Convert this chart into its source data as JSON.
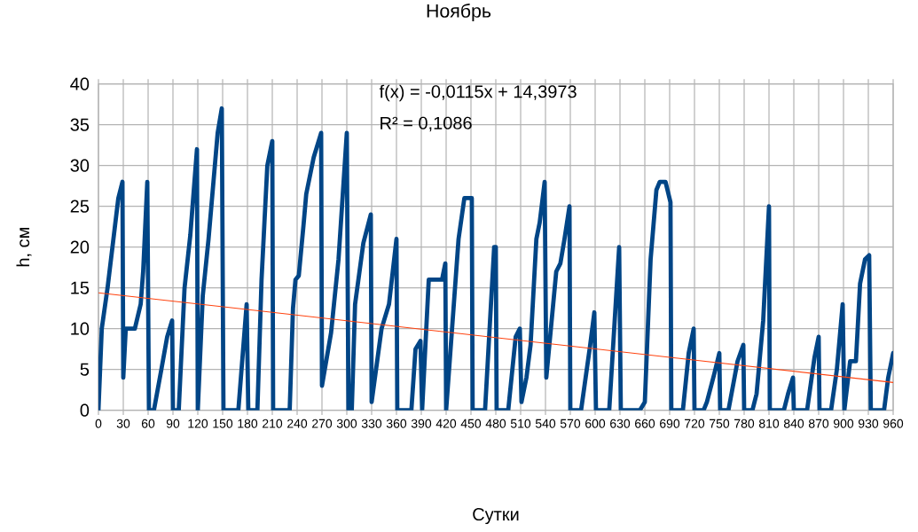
{
  "chart_data": {
    "type": "line",
    "title": "Ноябрь",
    "xlabel": "Сутки",
    "ylabel": "h, см",
    "annotations": [
      "f(x) = -0,0115x + 14,3973",
      "R² = 0,1086"
    ],
    "xlim": [
      0,
      960
    ],
    "ylim": [
      0,
      40
    ],
    "xticks": [
      0,
      30,
      60,
      90,
      120,
      150,
      180,
      210,
      240,
      270,
      300,
      330,
      360,
      390,
      420,
      450,
      480,
      510,
      540,
      570,
      600,
      630,
      660,
      690,
      720,
      750,
      780,
      810,
      840,
      870,
      900,
      930,
      960
    ],
    "yticks": [
      0,
      5,
      10,
      15,
      20,
      25,
      30,
      35,
      40
    ],
    "grid": true,
    "series": [
      {
        "color": "#004586",
        "x": [
          0,
          4,
          11,
          24,
          29,
          30,
          33,
          44,
          51,
          54,
          59,
          61,
          67,
          76,
          83,
          89,
          90,
          97,
          104,
          111,
          119,
          120,
          126,
          133,
          144,
          149,
          151,
          169,
          179,
          181,
          192,
          197,
          204,
          210,
          211,
          231,
          235,
          238,
          242,
          248,
          251,
          260,
          269,
          270,
          281,
          290,
          300,
          302,
          306,
          310,
          320,
          329,
          330,
          342,
          351,
          360,
          361,
          378,
          383,
          389,
          391,
          399,
          415,
          419,
          420,
          435,
          442,
          451,
          452,
          467,
          478,
          480,
          481,
          495,
          504,
          509,
          511,
          517,
          522,
          529,
          533,
          539,
          541,
          553,
          558,
          563,
          569,
          570,
          583,
          594,
          599,
          601,
          617,
          629,
          631,
          654,
          660,
          667,
          674,
          678,
          685,
          691,
          692,
          706,
          713,
          719,
          720,
          731,
          735,
          744,
          750,
          751,
          761,
          772,
          779,
          780,
          790,
          795,
          803,
          808,
          810,
          811,
          828,
          833,
          839,
          840,
          856,
          865,
          870,
          871,
          885,
          892,
          899,
          901,
          908,
          915,
          920,
          926,
          931,
          933,
          949,
          954,
          960
        ],
        "values": [
          0,
          10,
          15,
          26,
          28,
          4,
          10,
          10,
          13,
          17,
          28,
          0,
          0,
          5,
          9,
          11,
          0,
          0,
          15,
          21.5,
          32,
          0,
          14,
          21,
          34,
          37,
          0,
          0,
          13,
          0,
          0,
          16,
          30,
          33,
          0,
          0,
          12.5,
          16,
          16.5,
          23,
          26.5,
          31,
          34,
          3,
          9.5,
          18.5,
          34,
          0,
          0,
          13,
          20.5,
          24,
          1,
          10,
          13,
          21,
          0,
          0,
          7.5,
          8.5,
          0,
          16,
          16,
          18,
          0,
          21,
          26,
          26,
          0,
          0,
          20,
          20,
          0,
          0,
          9,
          10,
          1,
          4,
          8,
          21,
          23,
          28,
          4,
          17,
          18,
          21,
          25,
          0,
          0,
          8,
          12,
          0,
          0,
          20,
          0,
          0,
          1,
          18.5,
          27,
          28,
          28,
          25.5,
          0,
          0,
          7,
          10,
          0,
          0,
          1,
          4.5,
          7,
          0,
          0,
          6,
          8,
          0,
          0,
          2,
          11,
          21,
          25,
          0,
          0,
          2,
          4,
          0,
          0,
          6.5,
          9,
          0,
          0,
          5,
          13,
          0,
          6,
          6,
          15.5,
          18.5,
          19,
          0,
          0,
          4,
          7
        ]
      },
      {
        "color": "#ff420e",
        "x": [
          0,
          960
        ],
        "values": [
          14.4,
          3.4
        ]
      }
    ]
  }
}
